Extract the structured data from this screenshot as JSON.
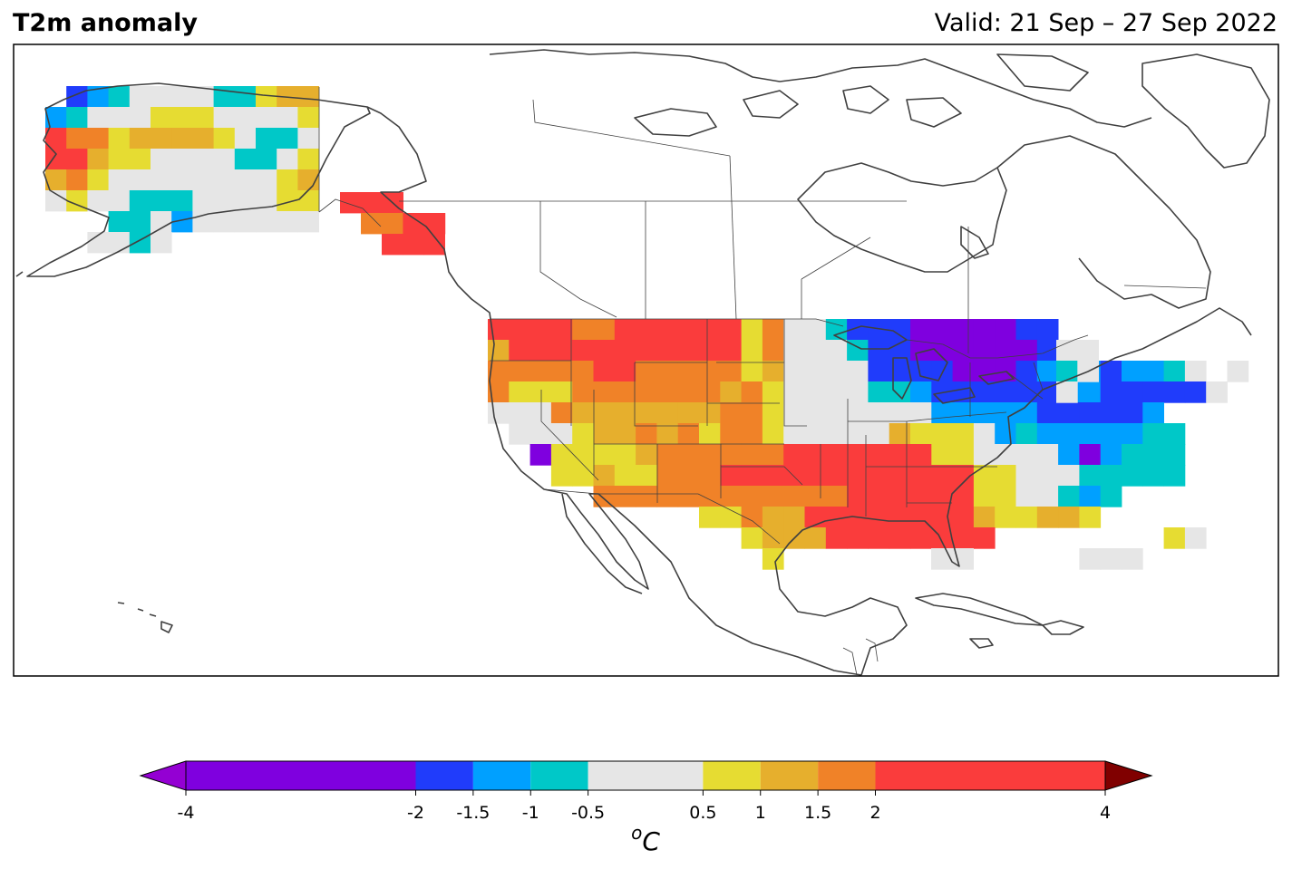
{
  "header": {
    "title": "T2m anomaly",
    "valid": "Valid: 21 Sep – 27 Sep 2022"
  },
  "colorbar": {
    "unit": "oC",
    "unit_base": "C",
    "unit_sup": "o",
    "ticks": [
      "-4",
      "-2",
      "-1.5",
      "-1",
      "-0.5",
      "0.5",
      "1",
      "1.5",
      "2",
      "4"
    ],
    "bins": [
      {
        "from": -4,
        "to": -2,
        "color": "#7f00df"
      },
      {
        "from": -2,
        "to": -1.5,
        "color": "#203cfb"
      },
      {
        "from": -1.5,
        "to": -1,
        "color": "#00a0ff"
      },
      {
        "from": -1,
        "to": -0.5,
        "color": "#00c8c8"
      },
      {
        "from": -0.5,
        "to": 0.5,
        "color": "#e6e6e6"
      },
      {
        "from": 0.5,
        "to": 1,
        "color": "#e6dc32"
      },
      {
        "from": 1,
        "to": 1.5,
        "color": "#e6af2d"
      },
      {
        "from": 1.5,
        "to": 2,
        "color": "#f08228"
      },
      {
        "from": 2,
        "to": 4,
        "color": "#fa3c3c"
      }
    ],
    "under_color": "#9400d3",
    "over_color": "#800000"
  },
  "map": {
    "region": "North America",
    "levels": {
      "V": "#7f00df",
      "B": "#203cfb",
      "L": "#00a0ff",
      "C": "#00c8c8",
      "W": "#e6e6e6",
      "Y": "#e6dc32",
      "G": "#e6af2d",
      "O": "#f08228",
      "R": "#fa3c3c"
    }
  }
}
